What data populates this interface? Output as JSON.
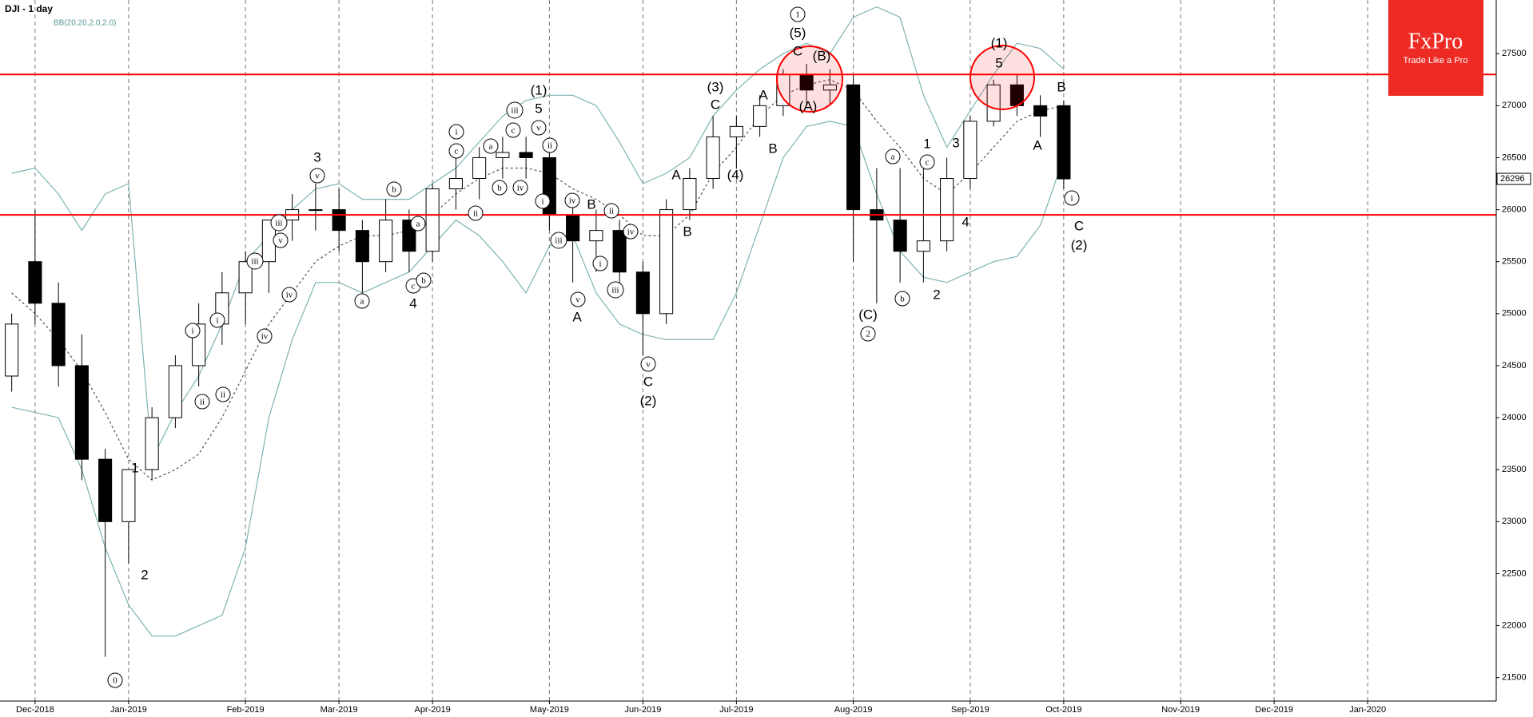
{
  "chart_data": {
    "type": "candlestick",
    "title": "DJI - 1 day",
    "categories": [
      null,
      "Dec-2018",
      null,
      null,
      null,
      "Jan-2019",
      null,
      null,
      null,
      null,
      "Feb-2019",
      null,
      null,
      null,
      "Mar-2019",
      null,
      null,
      null,
      "Apr-2019",
      null,
      null,
      null,
      null,
      "May-2019",
      null,
      null,
      null,
      "Jun-2019",
      null,
      null,
      null,
      "Jul-2019",
      null,
      null,
      null,
      null,
      "Aug-2019",
      null,
      null,
      null,
      null,
      "Sep-2019",
      null,
      null,
      null,
      "Oct-2019",
      null,
      null,
      null,
      null,
      "Nov-2019",
      null,
      null,
      null,
      "Dec-2019",
      null,
      null,
      null,
      "Jan-2020",
      null,
      null,
      null,
      null,
      null
    ],
    "ohlc": {
      "up_color": "#ffffff",
      "down_color": "#000000",
      "edge_color": "#000000",
      "open": [
        24400,
        25500,
        25100,
        24500,
        23600,
        23000,
        23500,
        24000,
        24500,
        24900,
        25200,
        25500,
        25900,
        26000,
        26000,
        25800,
        25500,
        25900,
        25600,
        26200,
        26300,
        26500,
        26550,
        26500,
        25950,
        25700,
        25800,
        25400,
        25000,
        26000,
        26300,
        26700,
        26800,
        27000,
        27300,
        27150,
        27200,
        26000,
        25900,
        25600,
        25700,
        26300,
        26850,
        27200,
        27000,
        27000,
        null,
        null,
        null,
        null,
        null,
        null,
        null,
        null,
        null,
        null,
        null,
        null,
        null,
        null,
        null,
        null,
        null,
        null
      ],
      "high": [
        25000,
        26000,
        25300,
        24800,
        23700,
        23500,
        24100,
        24600,
        25100,
        25400,
        25600,
        25900,
        26150,
        26250,
        26200,
        25900,
        26100,
        26000,
        26250,
        26500,
        26600,
        26700,
        26700,
        26600,
        26100,
        26000,
        25900,
        25500,
        26100,
        26400,
        26900,
        26900,
        27100,
        27350,
        27400,
        27350,
        27300,
        26400,
        26400,
        26500,
        26500,
        26900,
        27250,
        27300,
        27100,
        27050,
        null,
        null,
        null,
        null,
        null,
        null,
        null,
        null,
        null,
        null,
        null,
        null,
        null,
        null,
        null,
        null,
        null,
        null
      ],
      "low": [
        24250,
        24900,
        24300,
        23400,
        21700,
        22600,
        23400,
        23900,
        24300,
        24700,
        24900,
        25200,
        25700,
        25800,
        25600,
        25200,
        25400,
        25400,
        25500,
        26000,
        26100,
        26300,
        26300,
        25800,
        25300,
        25400,
        25300,
        24600,
        24900,
        25900,
        26200,
        26400,
        26700,
        26900,
        27000,
        27000,
        25500,
        25100,
        25300,
        25300,
        25600,
        26200,
        26800,
        26900,
        26700,
        26200,
        null,
        null,
        null,
        null,
        null,
        null,
        null,
        null,
        null,
        null,
        null,
        null,
        null,
        null,
        null,
        null,
        null,
        null
      ],
      "close": [
        24900,
        25100,
        24500,
        23600,
        23000,
        23500,
        24000,
        24500,
        24900,
        25200,
        25500,
        25900,
        26000,
        26000,
        25800,
        25500,
        25900,
        25600,
        26200,
        26300,
        26500,
        26550,
        26500,
        25950,
        25700,
        25800,
        25400,
        25000,
        26000,
        26300,
        26700,
        26800,
        27000,
        27300,
        27150,
        27200,
        26000,
        25900,
        25600,
        25700,
        26300,
        26850,
        27200,
        27000,
        26900,
        26296,
        null,
        null,
        null,
        null,
        null,
        null,
        null,
        null,
        null,
        null,
        null,
        null,
        null,
        null,
        null,
        null,
        null,
        null
      ]
    },
    "indicator": {
      "label": "BB(20,20,2.0,2.0)",
      "color": "#7fb3b3",
      "middle_color": "#555555",
      "upper": [
        26350,
        26400,
        26150,
        25800,
        26150,
        26250,
        23600,
        24050,
        24400,
        24900,
        25500,
        25750,
        26000,
        26200,
        26250,
        26100,
        26100,
        26100,
        26250,
        26400,
        26650,
        26900,
        27050,
        27100,
        27100,
        27000,
        26650,
        26250,
        26350,
        26500,
        26900,
        27150,
        27350,
        27500,
        27600,
        27500,
        27850,
        27950,
        27850,
        27100,
        26600,
        26950,
        27300,
        27600,
        27550,
        27350,
        null,
        null,
        null,
        null,
        null,
        null,
        null,
        null,
        null,
        null,
        null,
        null,
        null,
        null,
        null,
        null,
        null,
        null
      ],
      "middle": [
        25200,
        25000,
        24750,
        24450,
        24050,
        23600,
        23400,
        23500,
        23650,
        24000,
        24450,
        24900,
        25200,
        25500,
        25650,
        25750,
        25750,
        25800,
        25950,
        26150,
        26300,
        26400,
        26400,
        26350,
        26200,
        26100,
        25950,
        25750,
        25750,
        25950,
        26350,
        26600,
        26900,
        27100,
        27200,
        27250,
        27150,
        26850,
        26600,
        26300,
        26150,
        26350,
        26600,
        26850,
        26950,
        27000,
        null,
        null,
        null,
        null,
        null,
        null,
        null,
        null,
        null,
        null,
        null,
        null,
        null,
        null,
        null,
        null,
        null,
        null
      ],
      "lower": [
        24100,
        24050,
        24000,
        23500,
        22750,
        22200,
        21900,
        21900,
        22000,
        22100,
        22750,
        24000,
        24750,
        25300,
        25300,
        25200,
        25300,
        25400,
        25650,
        25900,
        25750,
        25500,
        25200,
        25650,
        25750,
        25200,
        24900,
        24800,
        24750,
        24750,
        24750,
        25200,
        25850,
        26500,
        26800,
        26850,
        26800,
        26150,
        25600,
        25350,
        25300,
        25400,
        25500,
        25550,
        25850,
        26500,
        null,
        null,
        null,
        null,
        null,
        null,
        null,
        null,
        null,
        null,
        null,
        null,
        null,
        null,
        null,
        null,
        null,
        null
      ]
    },
    "ylim": [
      21275,
      28016
    ],
    "yticks": [
      21500,
      22000,
      22500,
      23000,
      23500,
      24000,
      24500,
      25000,
      25500,
      26000,
      26500,
      27000,
      27500
    ],
    "grid": "x",
    "hlines": [
      {
        "value": 27300,
        "color": "#ff0000"
      },
      {
        "value": 25950,
        "color": "#ff0000"
      }
    ],
    "last_price": 26296,
    "annotations": [
      {
        "text": "0",
        "circled": true
      },
      {
        "text": "1"
      },
      {
        "text": "2"
      },
      {
        "text": "3"
      },
      {
        "text": "4"
      },
      {
        "text": "(1)"
      },
      {
        "text": "5"
      },
      {
        "text": "C"
      },
      {
        "text": "(2)"
      },
      {
        "text": "(3)"
      },
      {
        "text": "C"
      },
      {
        "text": "(4)"
      },
      {
        "text": "A"
      },
      {
        "text": "B"
      },
      {
        "text": "A"
      },
      {
        "text": "B"
      },
      {
        "text": "A"
      },
      {
        "text": "B"
      },
      {
        "text": "1",
        "circled": true
      },
      {
        "text": "(5)"
      },
      {
        "text": "C"
      },
      {
        "text": "(B)"
      },
      {
        "text": "(A)"
      },
      {
        "text": "(C)"
      },
      {
        "text": "2",
        "circled": true
      },
      {
        "text": "1"
      },
      {
        "text": "2"
      },
      {
        "text": "3"
      },
      {
        "text": "4"
      },
      {
        "text": "(1)"
      },
      {
        "text": "5"
      },
      {
        "text": "B"
      },
      {
        "text": "A"
      },
      {
        "text": "C"
      },
      {
        "text": "(2)"
      },
      {
        "text": "i",
        "circled": true
      },
      {
        "text": "ii",
        "circled": true
      },
      {
        "text": "i",
        "circled": true
      },
      {
        "text": "ii",
        "circled": true
      },
      {
        "text": "iii",
        "circled": true
      },
      {
        "text": "iv",
        "circled": true
      },
      {
        "text": "iii",
        "circled": true
      },
      {
        "text": "v",
        "circled": true
      },
      {
        "text": "iv",
        "circled": true
      },
      {
        "text": "v",
        "circled": true
      },
      {
        "text": "a",
        "circled": true
      },
      {
        "text": "b",
        "circled": true
      },
      {
        "text": "a",
        "circled": true
      },
      {
        "text": "c",
        "circled": true
      },
      {
        "text": "b",
        "circled": true
      },
      {
        "text": "i",
        "circled": true
      },
      {
        "text": "c",
        "circled": true
      },
      {
        "text": "ii",
        "circled": true
      },
      {
        "text": "a",
        "circled": true
      },
      {
        "text": "b",
        "circled": true
      },
      {
        "text": "c",
        "circled": true
      },
      {
        "text": "iii",
        "circled": true
      },
      {
        "text": "iv",
        "circled": true
      },
      {
        "text": "v",
        "circled": true
      },
      {
        "text": "ii",
        "circled": true
      },
      {
        "text": "i",
        "circled": true
      },
      {
        "text": "iv",
        "circled": true
      },
      {
        "text": "iii",
        "circled": true
      },
      {
        "text": "ii",
        "circled": true
      },
      {
        "text": "iv",
        "circled": true
      },
      {
        "text": "i",
        "circled": true
      },
      {
        "text": "v",
        "circled": true
      },
      {
        "text": "iii",
        "circled": true
      },
      {
        "text": "v",
        "circled": true
      },
      {
        "text": "a",
        "circled": true
      },
      {
        "text": "c",
        "circled": true
      },
      {
        "text": "b",
        "circled": true
      },
      {
        "text": "i",
        "circled": true
      }
    ]
  },
  "logo": {
    "name": "FxPro",
    "tagline": "Trade Like a Pro"
  }
}
